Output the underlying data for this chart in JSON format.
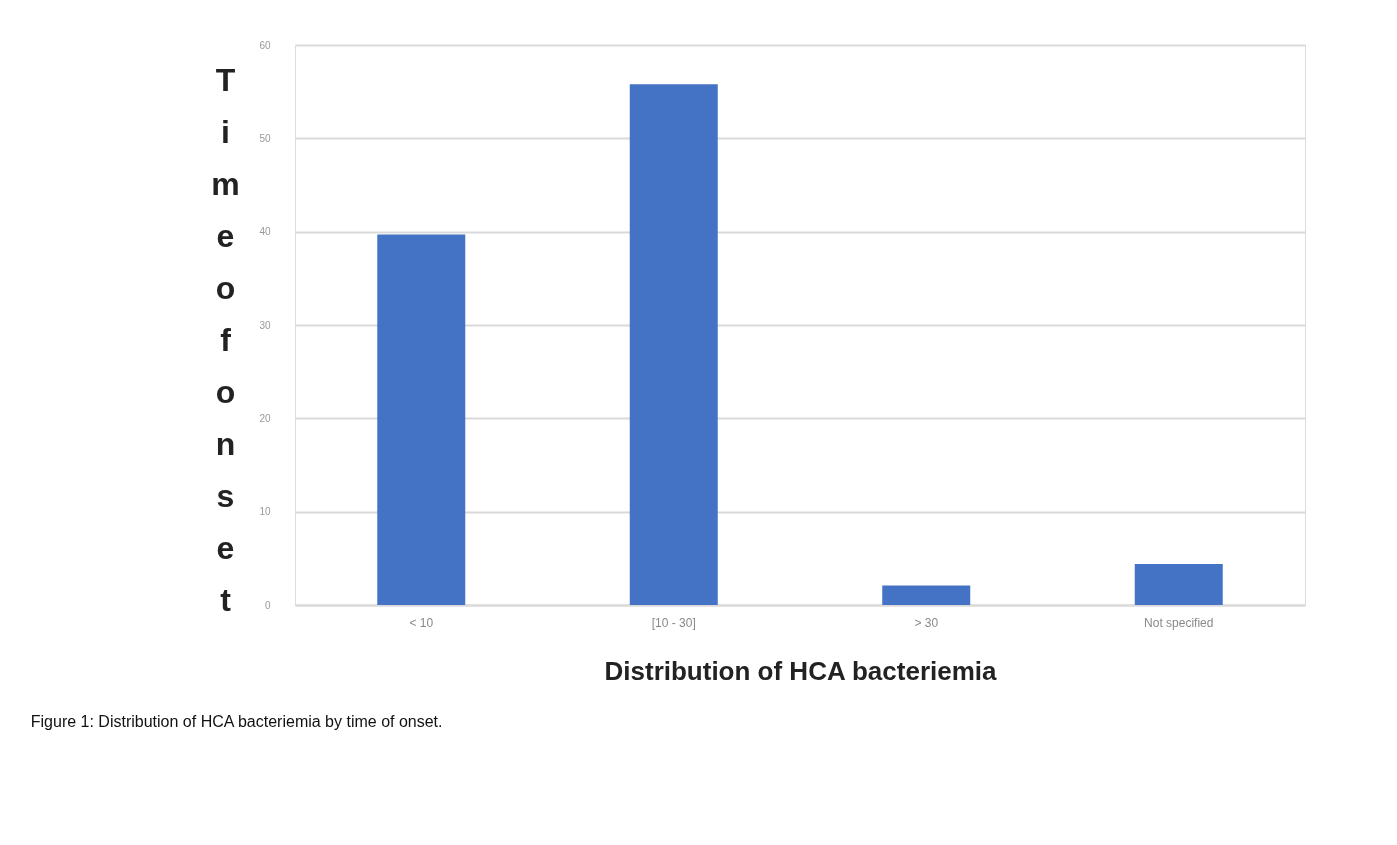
{
  "chart_data": {
    "type": "bar",
    "xlabel": "Distribution of HCA bacteriemia",
    "ylabel": "Time of onset",
    "categories": [
      "< 10",
      "[10 - 30]",
      "> 30",
      "Not specified"
    ],
    "values": [
      39.7,
      55.8,
      2.1,
      4.4
    ],
    "color": "#4472c4",
    "ylim": [
      0,
      60
    ],
    "yticks": [
      0,
      10,
      20,
      30,
      40,
      50,
      60
    ],
    "grid": "y",
    "annotations": [
      "Figure 1: Distribution of HCA bacteriemia by time of onset."
    ]
  }
}
